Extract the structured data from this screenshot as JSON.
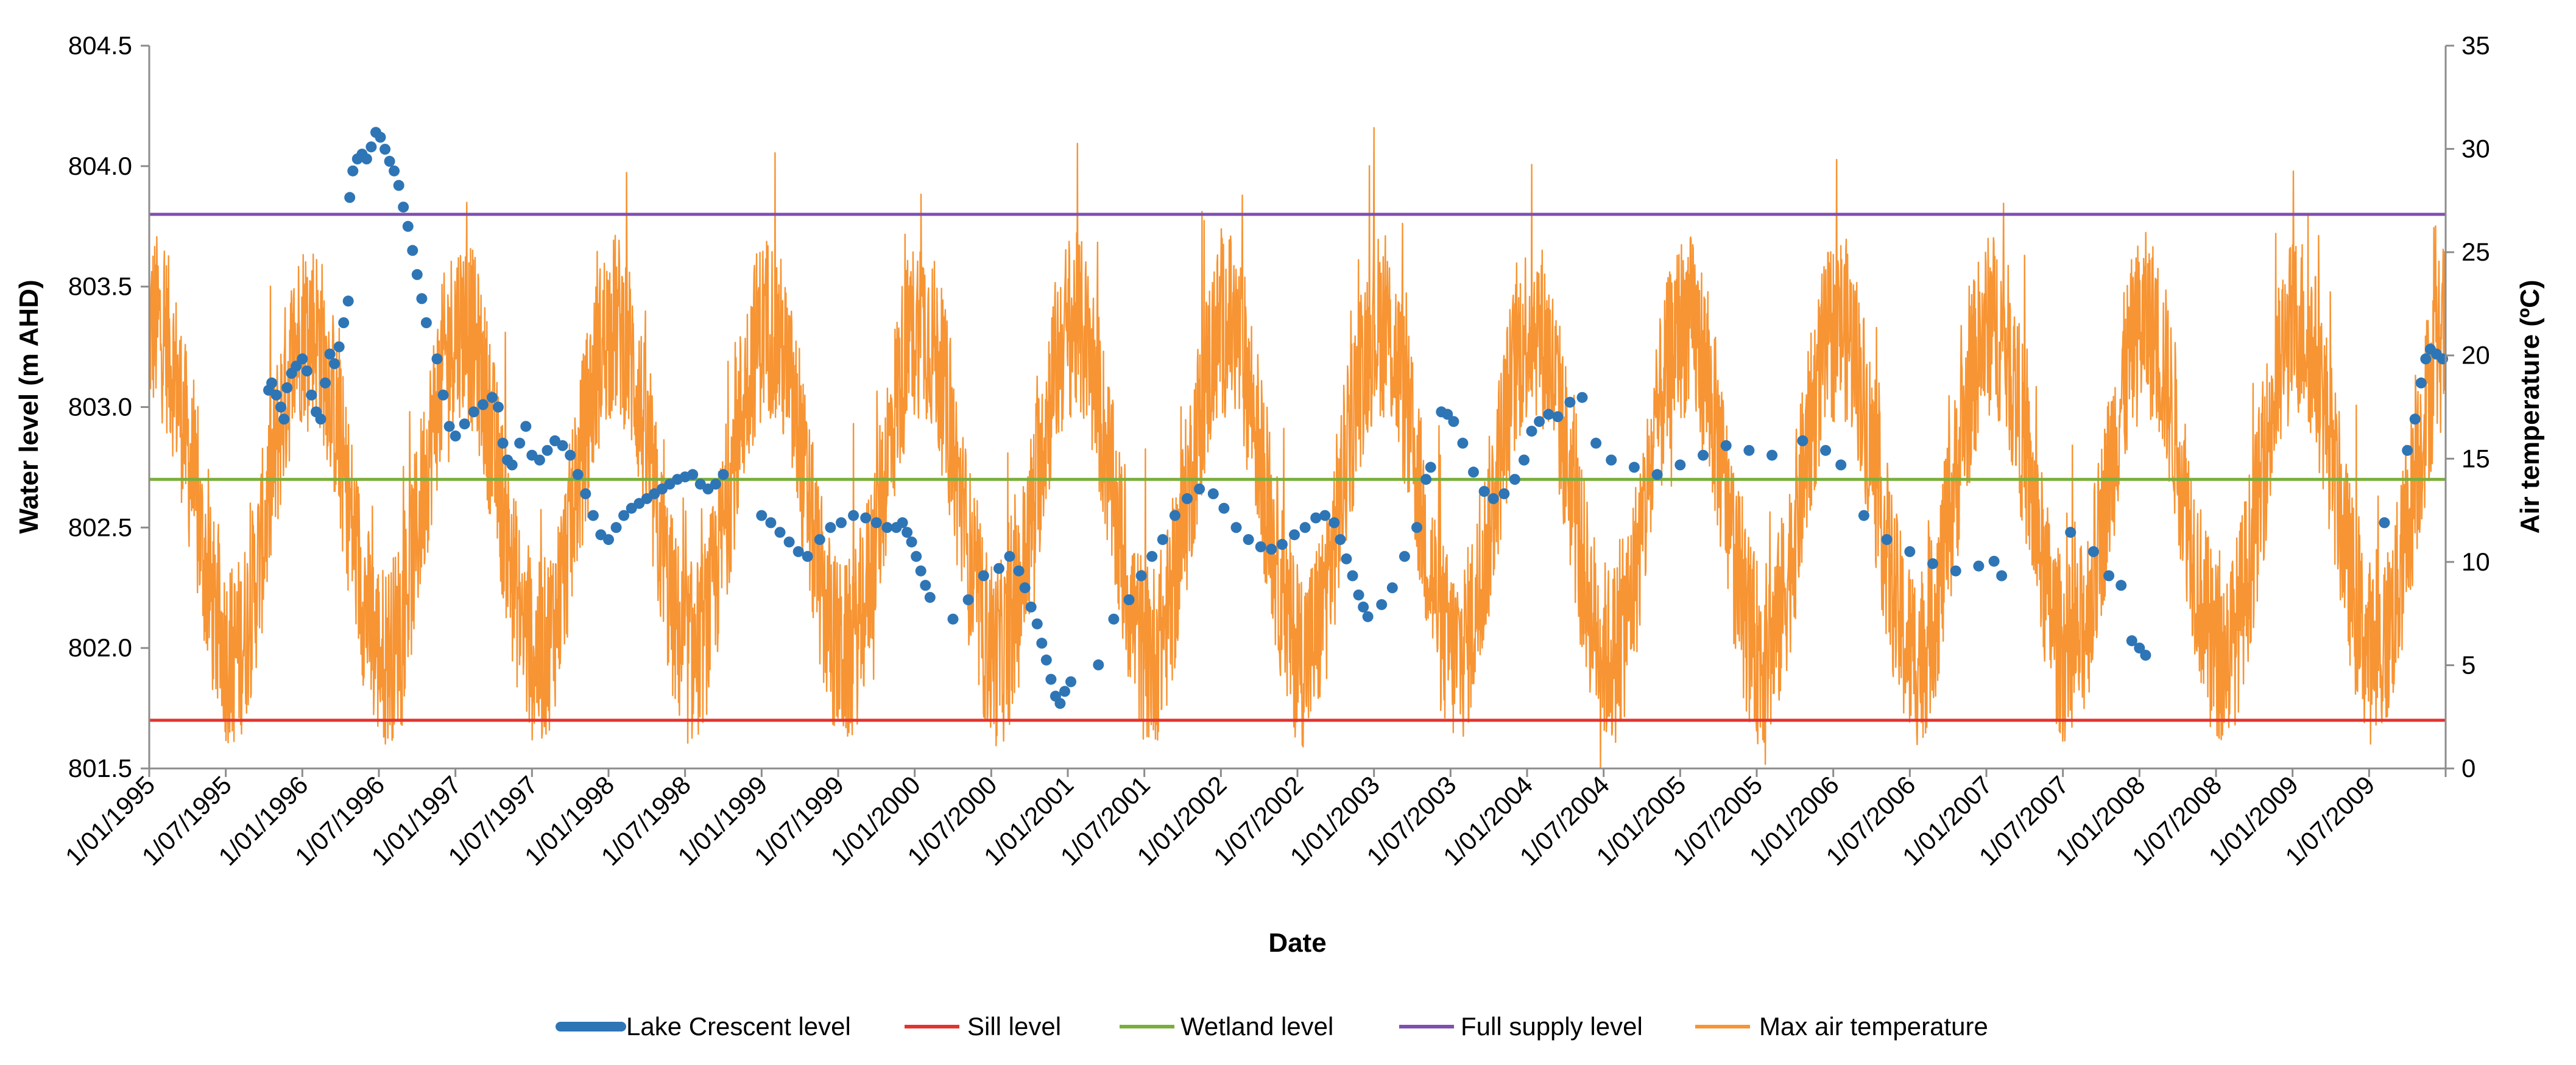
{
  "chart_data": {
    "type": "line",
    "title": "",
    "xlabel": "Date",
    "ylabel_left": "Water level (m AHD)",
    "ylabel_right": "Air temperature (ºC)",
    "ylim_left": [
      801.5,
      804.5
    ],
    "ylim_right": [
      0,
      35
    ],
    "yticks_left": [
      "801.5",
      "802.0",
      "802.5",
      "803.0",
      "803.5",
      "804.0",
      "804.5"
    ],
    "yticks_right": [
      "0",
      "5",
      "10",
      "15",
      "20",
      "25",
      "30",
      "35"
    ],
    "x_range": [
      1995.0,
      2010.0
    ],
    "x_tick_labels": [
      "1/01/1995",
      "1/07/1995",
      "1/01/1996",
      "1/07/1996",
      "1/01/1997",
      "1/07/1997",
      "1/01/1998",
      "1/07/1998",
      "1/01/1999",
      "1/07/1999",
      "1/01/2000",
      "1/07/2000",
      "1/01/2001",
      "1/07/2001",
      "1/01/2002",
      "1/07/2002",
      "1/01/2003",
      "1/07/2003",
      "1/01/2004",
      "1/07/2004",
      "1/01/2005",
      "1/07/2005",
      "1/01/2006",
      "1/07/2006",
      "1/01/2007",
      "1/07/2007",
      "1/01/2008",
      "1/07/2008",
      "1/01/2009",
      "1/07/2009"
    ],
    "grid": false,
    "legend_position": "bottom",
    "series": [
      {
        "name": "Lake Crescent level",
        "axis": "left",
        "color": "#2E75B6",
        "style": "dots",
        "points": [
          [
            1995.78,
            803.07
          ],
          [
            1995.8,
            803.1
          ],
          [
            1995.83,
            803.05
          ],
          [
            1995.86,
            803.0
          ],
          [
            1995.88,
            802.95
          ],
          [
            1995.9,
            803.08
          ],
          [
            1995.93,
            803.14
          ],
          [
            1995.96,
            803.17
          ],
          [
            1996.0,
            803.2
          ],
          [
            1996.03,
            803.15
          ],
          [
            1996.06,
            803.05
          ],
          [
            1996.09,
            802.98
          ],
          [
            1996.12,
            802.95
          ],
          [
            1996.15,
            803.1
          ],
          [
            1996.18,
            803.22
          ],
          [
            1996.21,
            803.18
          ],
          [
            1996.24,
            803.25
          ],
          [
            1996.27,
            803.35
          ],
          [
            1996.3,
            803.44
          ],
          [
            1996.31,
            803.87
          ],
          [
            1996.33,
            803.98
          ],
          [
            1996.36,
            804.03
          ],
          [
            1996.39,
            804.05
          ],
          [
            1996.42,
            804.03
          ],
          [
            1996.45,
            804.08
          ],
          [
            1996.48,
            804.14
          ],
          [
            1996.51,
            804.12
          ],
          [
            1996.54,
            804.07
          ],
          [
            1996.57,
            804.02
          ],
          [
            1996.6,
            803.98
          ],
          [
            1996.63,
            803.92
          ],
          [
            1996.66,
            803.83
          ],
          [
            1996.69,
            803.75
          ],
          [
            1996.72,
            803.65
          ],
          [
            1996.75,
            803.55
          ],
          [
            1996.78,
            803.45
          ],
          [
            1996.81,
            803.35
          ],
          [
            1996.88,
            803.2
          ],
          [
            1996.92,
            803.05
          ],
          [
            1996.96,
            802.92
          ],
          [
            1997.0,
            802.88
          ],
          [
            1997.06,
            802.93
          ],
          [
            1997.12,
            802.98
          ],
          [
            1997.18,
            803.01
          ],
          [
            1997.24,
            803.04
          ],
          [
            1997.28,
            803.0
          ],
          [
            1997.31,
            802.85
          ],
          [
            1997.34,
            802.78
          ],
          [
            1997.37,
            802.76
          ],
          [
            1997.42,
            802.85
          ],
          [
            1997.46,
            802.92
          ],
          [
            1997.5,
            802.8
          ],
          [
            1997.55,
            802.78
          ],
          [
            1997.6,
            802.82
          ],
          [
            1997.65,
            802.86
          ],
          [
            1997.7,
            802.84
          ],
          [
            1997.75,
            802.8
          ],
          [
            1997.8,
            802.72
          ],
          [
            1997.85,
            802.64
          ],
          [
            1997.9,
            802.55
          ],
          [
            1997.95,
            802.47
          ],
          [
            1998.0,
            802.45
          ],
          [
            1998.05,
            802.5
          ],
          [
            1998.1,
            802.55
          ],
          [
            1998.15,
            802.58
          ],
          [
            1998.2,
            802.6
          ],
          [
            1998.25,
            802.62
          ],
          [
            1998.3,
            802.64
          ],
          [
            1998.35,
            802.66
          ],
          [
            1998.4,
            802.68
          ],
          [
            1998.45,
            802.7
          ],
          [
            1998.5,
            802.71
          ],
          [
            1998.55,
            802.72
          ],
          [
            1998.6,
            802.68
          ],
          [
            1998.65,
            802.66
          ],
          [
            1998.7,
            802.68
          ],
          [
            1998.75,
            802.72
          ],
          [
            1999.0,
            802.55
          ],
          [
            1999.06,
            802.52
          ],
          [
            1999.12,
            802.48
          ],
          [
            1999.18,
            802.44
          ],
          [
            1999.24,
            802.4
          ],
          [
            1999.3,
            802.38
          ],
          [
            1999.38,
            802.45
          ],
          [
            1999.45,
            802.5
          ],
          [
            1999.52,
            802.52
          ],
          [
            1999.6,
            802.55
          ],
          [
            1999.68,
            802.54
          ],
          [
            1999.75,
            802.52
          ],
          [
            1999.82,
            802.5
          ],
          [
            1999.88,
            802.5
          ],
          [
            1999.92,
            802.52
          ],
          [
            1999.95,
            802.48
          ],
          [
            1999.98,
            802.44
          ],
          [
            2000.01,
            802.38
          ],
          [
            2000.04,
            802.32
          ],
          [
            2000.07,
            802.26
          ],
          [
            2000.1,
            802.21
          ],
          [
            2000.25,
            802.12
          ],
          [
            2000.35,
            802.2
          ],
          [
            2000.45,
            802.3
          ],
          [
            2000.55,
            802.33
          ],
          [
            2000.62,
            802.38
          ],
          [
            2000.68,
            802.32
          ],
          [
            2000.72,
            802.25
          ],
          [
            2000.76,
            802.17
          ],
          [
            2000.8,
            802.1
          ],
          [
            2000.83,
            802.02
          ],
          [
            2000.86,
            801.95
          ],
          [
            2000.89,
            801.87
          ],
          [
            2000.92,
            801.8
          ],
          [
            2000.95,
            801.77
          ],
          [
            2000.98,
            801.82
          ],
          [
            2001.02,
            801.86
          ],
          [
            2001.2,
            801.93
          ],
          [
            2001.3,
            802.12
          ],
          [
            2001.4,
            802.2
          ],
          [
            2001.48,
            802.3
          ],
          [
            2001.55,
            802.38
          ],
          [
            2001.62,
            802.45
          ],
          [
            2001.7,
            802.55
          ],
          [
            2001.78,
            802.62
          ],
          [
            2001.86,
            802.66
          ],
          [
            2001.95,
            802.64
          ],
          [
            2002.02,
            802.58
          ],
          [
            2002.1,
            802.5
          ],
          [
            2002.18,
            802.45
          ],
          [
            2002.26,
            802.42
          ],
          [
            2002.33,
            802.41
          ],
          [
            2002.4,
            802.43
          ],
          [
            2002.48,
            802.47
          ],
          [
            2002.55,
            802.5
          ],
          [
            2002.62,
            802.54
          ],
          [
            2002.68,
            802.55
          ],
          [
            2002.74,
            802.52
          ],
          [
            2002.78,
            802.45
          ],
          [
            2002.82,
            802.37
          ],
          [
            2002.86,
            802.3
          ],
          [
            2002.9,
            802.22
          ],
          [
            2002.93,
            802.17
          ],
          [
            2002.96,
            802.13
          ],
          [
            2003.05,
            802.18
          ],
          [
            2003.12,
            802.25
          ],
          [
            2003.2,
            802.38
          ],
          [
            2003.28,
            802.5
          ],
          [
            2003.34,
            802.7
          ],
          [
            2003.37,
            802.75
          ],
          [
            2003.44,
            802.98
          ],
          [
            2003.48,
            802.97
          ],
          [
            2003.52,
            802.94
          ],
          [
            2003.58,
            802.85
          ],
          [
            2003.65,
            802.73
          ],
          [
            2003.72,
            802.65
          ],
          [
            2003.78,
            802.62
          ],
          [
            2003.85,
            802.64
          ],
          [
            2003.92,
            802.7
          ],
          [
            2003.98,
            802.78
          ],
          [
            2004.03,
            802.9
          ],
          [
            2004.08,
            802.94
          ],
          [
            2004.14,
            802.97
          ],
          [
            2004.2,
            802.96
          ],
          [
            2004.28,
            803.02
          ],
          [
            2004.36,
            803.04
          ],
          [
            2004.45,
            802.85
          ],
          [
            2004.55,
            802.78
          ],
          [
            2004.7,
            802.75
          ],
          [
            2004.85,
            802.72
          ],
          [
            2005.0,
            802.76
          ],
          [
            2005.15,
            802.8
          ],
          [
            2005.3,
            802.84
          ],
          [
            2005.45,
            802.82
          ],
          [
            2005.6,
            802.8
          ],
          [
            2005.8,
            802.86
          ],
          [
            2005.95,
            802.82
          ],
          [
            2006.05,
            802.76
          ],
          [
            2006.2,
            802.55
          ],
          [
            2006.35,
            802.45
          ],
          [
            2006.5,
            802.4
          ],
          [
            2006.65,
            802.35
          ],
          [
            2006.8,
            802.32
          ],
          [
            2006.95,
            802.34
          ],
          [
            2007.05,
            802.36
          ],
          [
            2007.1,
            802.3
          ],
          [
            2007.55,
            802.48
          ],
          [
            2007.7,
            802.4
          ],
          [
            2007.8,
            802.3
          ],
          [
            2007.88,
            802.26
          ],
          [
            2007.95,
            802.03
          ],
          [
            2008.0,
            802.0
          ],
          [
            2008.04,
            801.97
          ],
          [
            2009.6,
            802.52
          ],
          [
            2009.75,
            802.82
          ],
          [
            2009.8,
            802.95
          ],
          [
            2009.84,
            803.1
          ],
          [
            2009.87,
            803.2
          ],
          [
            2009.9,
            803.24
          ],
          [
            2009.94,
            803.22
          ],
          [
            2009.98,
            803.2
          ]
        ]
      },
      {
        "name": "Sill level",
        "axis": "left",
        "color": "#E2342F",
        "style": "line",
        "value": 801.7
      },
      {
        "name": "Wetland level",
        "axis": "left",
        "color": "#7AAE3B",
        "style": "line",
        "value": 802.7
      },
      {
        "name": "Full supply level",
        "axis": "left",
        "color": "#7F4FB0",
        "style": "line",
        "value": 803.8
      },
      {
        "name": "Max air temperature",
        "axis": "right",
        "color": "#F79433",
        "style": "line",
        "generator": {
          "description": "Daily max air temperature, seasonal cycle peaking each January",
          "mean": 13.5,
          "seasonal_amplitude": 8.0,
          "daily_noise": 4.5,
          "samples_per_year": 365,
          "min": 0,
          "max": 33
        }
      }
    ]
  }
}
